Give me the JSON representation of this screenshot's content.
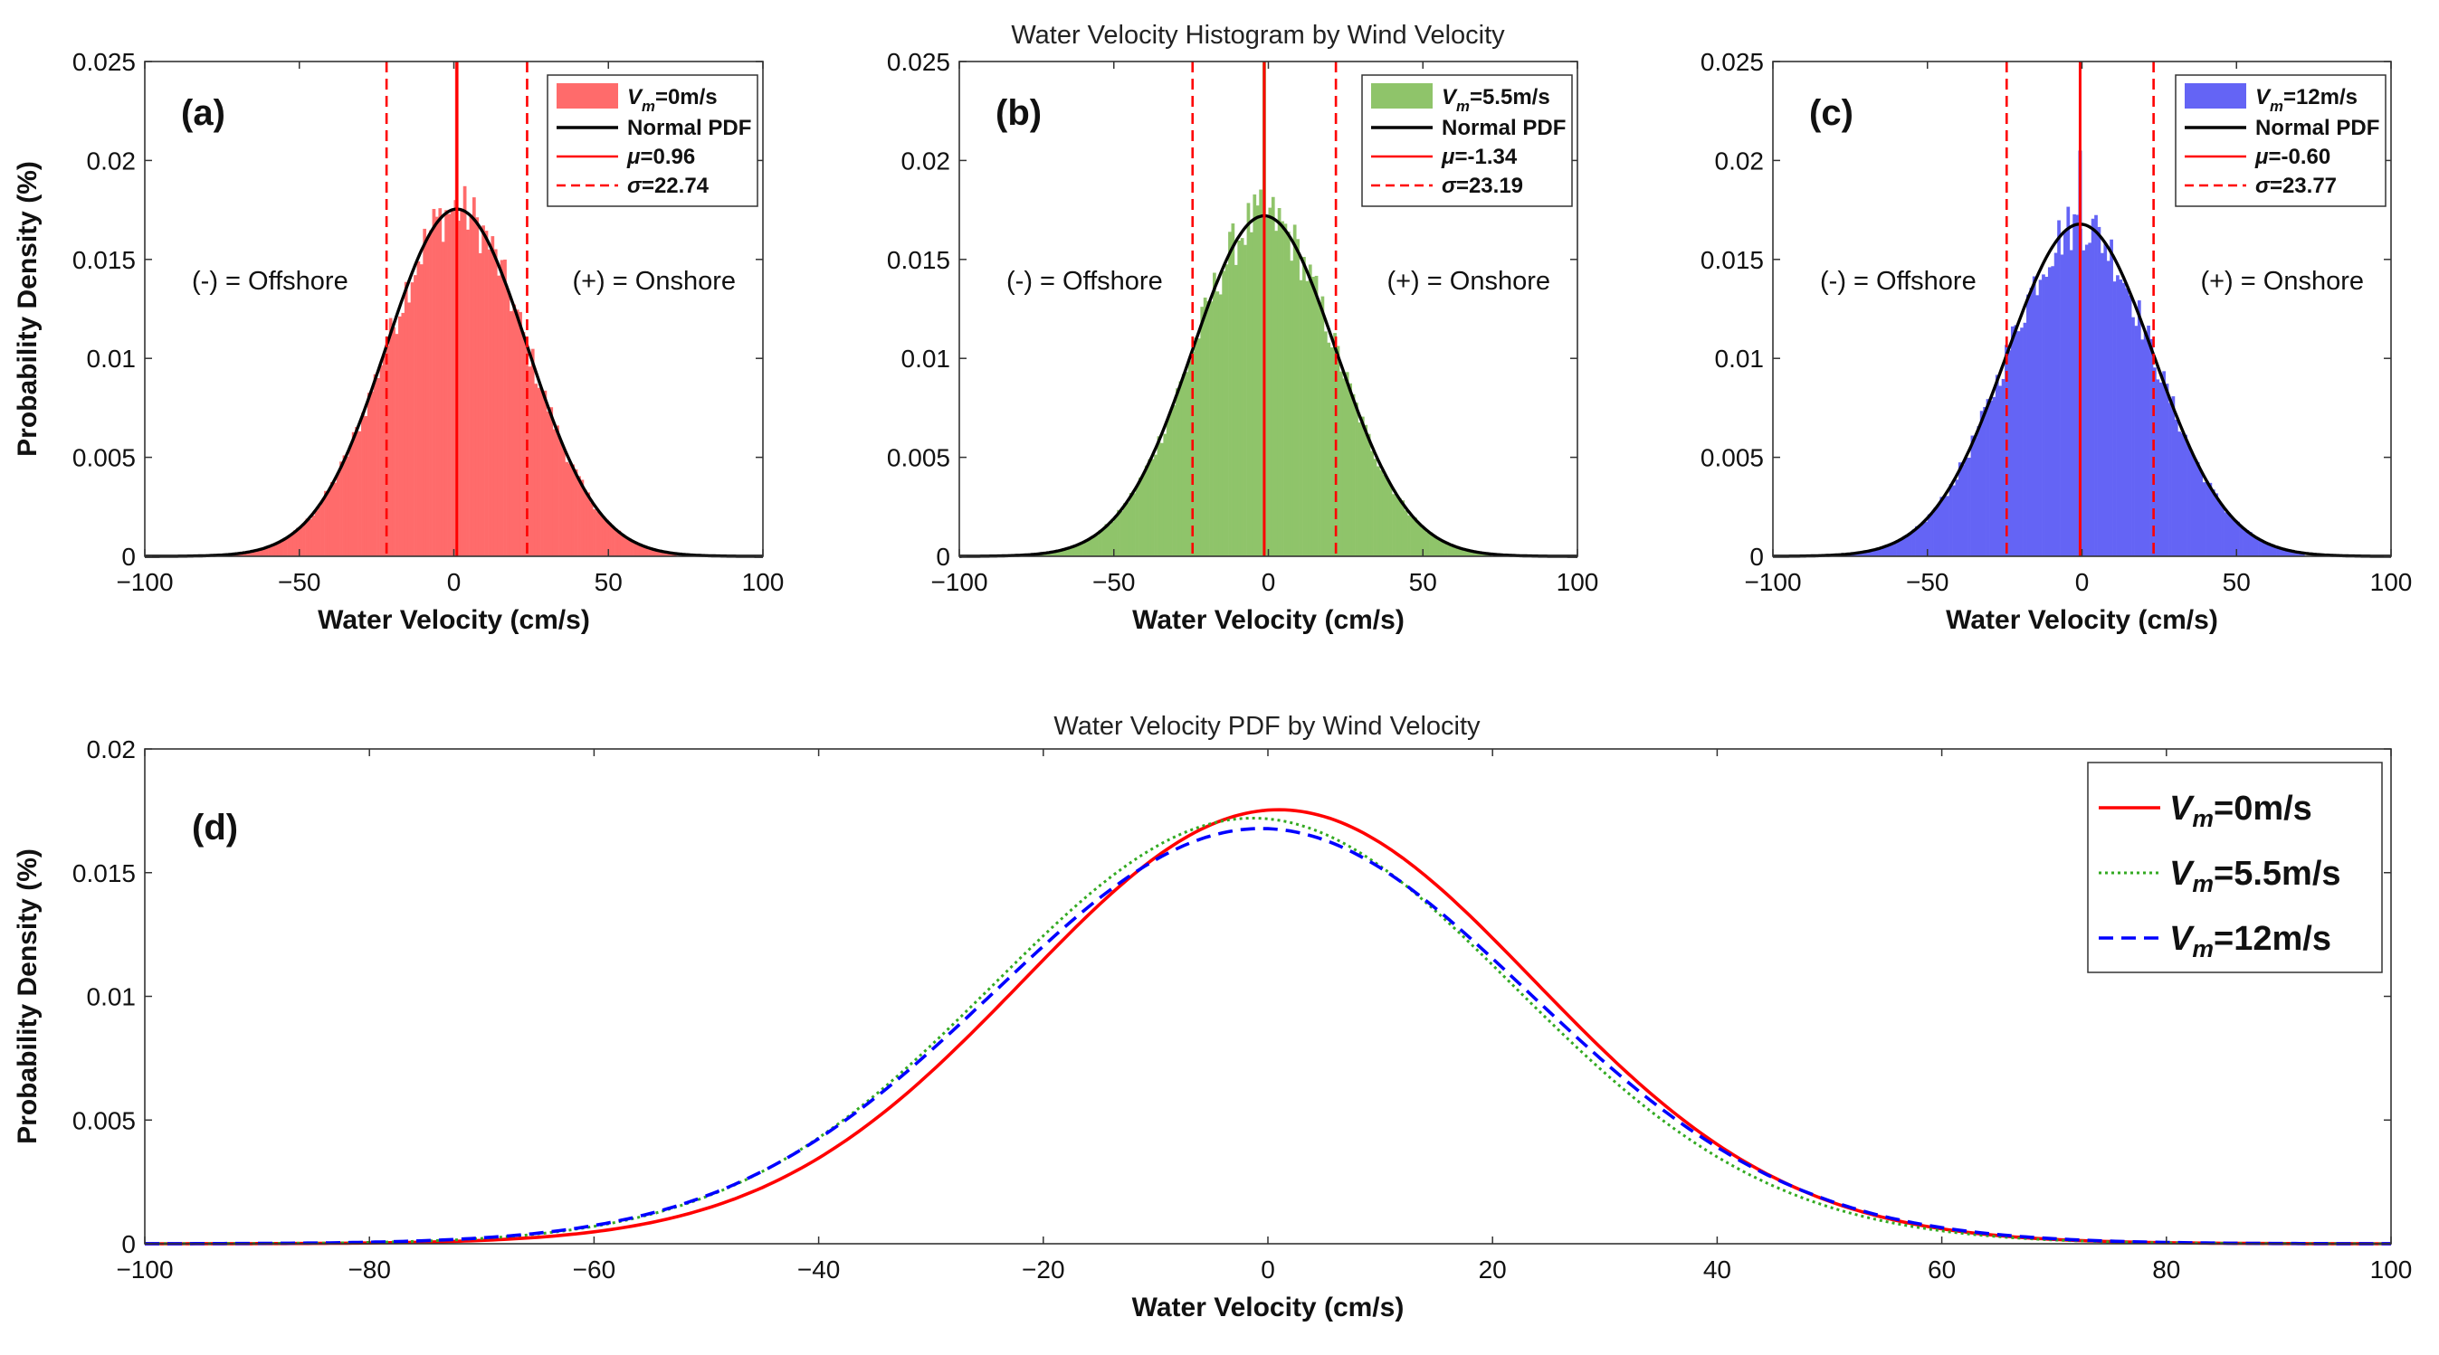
{
  "titles": {
    "top": "Water Velocity Histogram by Wind Velocity",
    "bottom": "Water Velocity PDF by Wind Velocity"
  },
  "annotations": {
    "offshore": "(-) = Offshore",
    "onshore": "(+) = Onshore"
  },
  "chart_data": [
    {
      "type": "bar",
      "panel_label": "(a)",
      "xlabel": "Water Velocity (cm/s)",
      "ylabel": "Probability Density (%)",
      "xlim": [
        -100,
        100
      ],
      "ylim": [
        0,
        0.025
      ],
      "xticks": [
        "−100",
        "−50",
        "0",
        "50",
        "100"
      ],
      "xtick_values": [
        -100,
        -50,
        0,
        50,
        100
      ],
      "yticks": [
        "0",
        "0.005",
        "0.01",
        "0.015",
        "0.02",
        "0.025"
      ],
      "ytick_values": [
        0,
        0.005,
        0.01,
        0.015,
        0.02,
        0.025
      ],
      "color": "#ff6b6b",
      "mu": 0.96,
      "sigma": 22.74,
      "peak_spike": 0.025,
      "legend": {
        "hist": {
          "v": "V",
          "sub": "m",
          "rest": "=0m/s"
        },
        "pdf": "Normal PDF",
        "mu": {
          "sym": "μ",
          "rest": "=0.96"
        },
        "sigma": {
          "sym": "σ",
          "rest": "=22.74"
        }
      }
    },
    {
      "type": "bar",
      "panel_label": "(b)",
      "xlabel": "Water Velocity (cm/s)",
      "ylabel": "",
      "xlim": [
        -100,
        100
      ],
      "ylim": [
        0,
        0.025
      ],
      "xticks": [
        "−100",
        "−50",
        "0",
        "50",
        "100"
      ],
      "xtick_values": [
        -100,
        -50,
        0,
        50,
        100
      ],
      "yticks": [
        "0",
        "0.005",
        "0.01",
        "0.015",
        "0.02",
        "0.025"
      ],
      "ytick_values": [
        0,
        0.005,
        0.01,
        0.015,
        0.02,
        0.025
      ],
      "color": "#8fc46a",
      "mu": -1.34,
      "sigma": 23.19,
      "peak_spike": 0.025,
      "legend": {
        "hist": {
          "v": "V",
          "sub": "m",
          "rest": "=5.5m/s"
        },
        "pdf": "Normal PDF",
        "mu": {
          "sym": "μ",
          "rest": "=-1.34"
        },
        "sigma": {
          "sym": "σ",
          "rest": "=23.19"
        }
      }
    },
    {
      "type": "bar",
      "panel_label": "(c)",
      "xlabel": "Water Velocity (cm/s)",
      "ylabel": "",
      "xlim": [
        -100,
        100
      ],
      "ylim": [
        0,
        0.025
      ],
      "xticks": [
        "−100",
        "−50",
        "0",
        "50",
        "100"
      ],
      "xtick_values": [
        -100,
        -50,
        0,
        50,
        100
      ],
      "yticks": [
        "0",
        "0.005",
        "0.01",
        "0.015",
        "0.02",
        "0.025"
      ],
      "ytick_values": [
        0,
        0.005,
        0.01,
        0.015,
        0.02,
        0.025
      ],
      "color": "#6464f5",
      "mu": -0.6,
      "sigma": 23.77,
      "peak_spike": 0.0205,
      "legend": {
        "hist": {
          "v": "V",
          "sub": "m",
          "rest": "=12m/s"
        },
        "pdf": "Normal PDF",
        "mu": {
          "sym": "μ",
          "rest": "=-0.60"
        },
        "sigma": {
          "sym": "σ",
          "rest": "=23.77"
        }
      }
    },
    {
      "type": "line",
      "panel_label": "(d)",
      "xlabel": "Water Velocity (cm/s)",
      "ylabel": "Probability Density (%)",
      "xlim": [
        -100,
        100
      ],
      "ylim": [
        0,
        0.02
      ],
      "xticks": [
        "−100",
        "−80",
        "−60",
        "−40",
        "−20",
        "0",
        "20",
        "40",
        "60",
        "80",
        "100"
      ],
      "xtick_values": [
        -100,
        -80,
        -60,
        -40,
        -20,
        0,
        20,
        40,
        60,
        80,
        100
      ],
      "yticks": [
        "0",
        "0.005",
        "0.01",
        "0.015",
        "0.02"
      ],
      "ytick_values": [
        0,
        0.005,
        0.01,
        0.015,
        0.02
      ],
      "series": [
        {
          "name": "V_m=0m/s",
          "v": "V",
          "sub": "m",
          "rest": "=0m/s",
          "mu": 0.96,
          "sigma": 22.74,
          "color": "#ff0000",
          "dash": "solid"
        },
        {
          "name": "V_m=5.5m/s",
          "v": "V",
          "sub": "m",
          "rest": "=5.5m/s",
          "mu": -1.34,
          "sigma": 23.19,
          "color": "#33aa22",
          "dash": "dotted"
        },
        {
          "name": "V_m=12m/s",
          "v": "V",
          "sub": "m",
          "rest": "=12m/s",
          "mu": -0.6,
          "sigma": 23.77,
          "color": "#0000ff",
          "dash": "dashed"
        }
      ]
    }
  ]
}
